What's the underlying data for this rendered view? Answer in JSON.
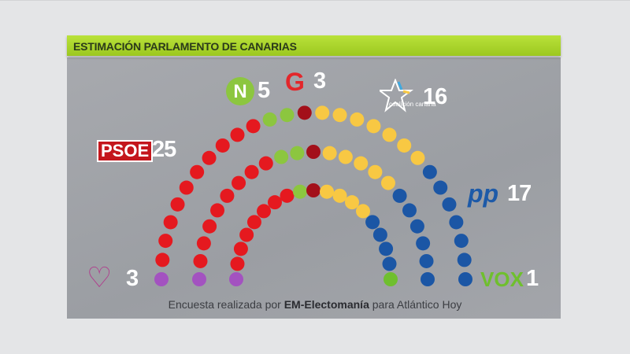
{
  "header": {
    "title": "ESTIMACIÓN PARLAMENTO DE CANARIAS"
  },
  "source": {
    "prefix": "Encuesta realizada por ",
    "bold": "EM-Electomanía",
    "suffix": " para Atlántico Hoy"
  },
  "chart_data": {
    "type": "parliament",
    "title": "ESTIMACIÓN PARLAMENTO DE CANARIAS",
    "total_seats": 70,
    "series": [
      {
        "name": "Podemos",
        "logo": "heart-logo",
        "seats": 3,
        "color": "#a352c0"
      },
      {
        "name": "PSOE",
        "logo": "PSOE",
        "seats": 25,
        "color": "#e5191f"
      },
      {
        "name": "NC",
        "logo": "N",
        "seats": 5,
        "color": "#8cc63f"
      },
      {
        "name": "ASG",
        "logo": "G",
        "seats": 3,
        "color": "#a3101a"
      },
      {
        "name": "CC",
        "logo": "coalición canaria",
        "seats": 16,
        "color": "#f8c843"
      },
      {
        "name": "PP",
        "logo": "pp",
        "seats": 17,
        "color": "#1b56a5"
      },
      {
        "name": "VOX",
        "logo": "VOX",
        "seats": 1,
        "color": "#6fbf2e"
      }
    ]
  }
}
